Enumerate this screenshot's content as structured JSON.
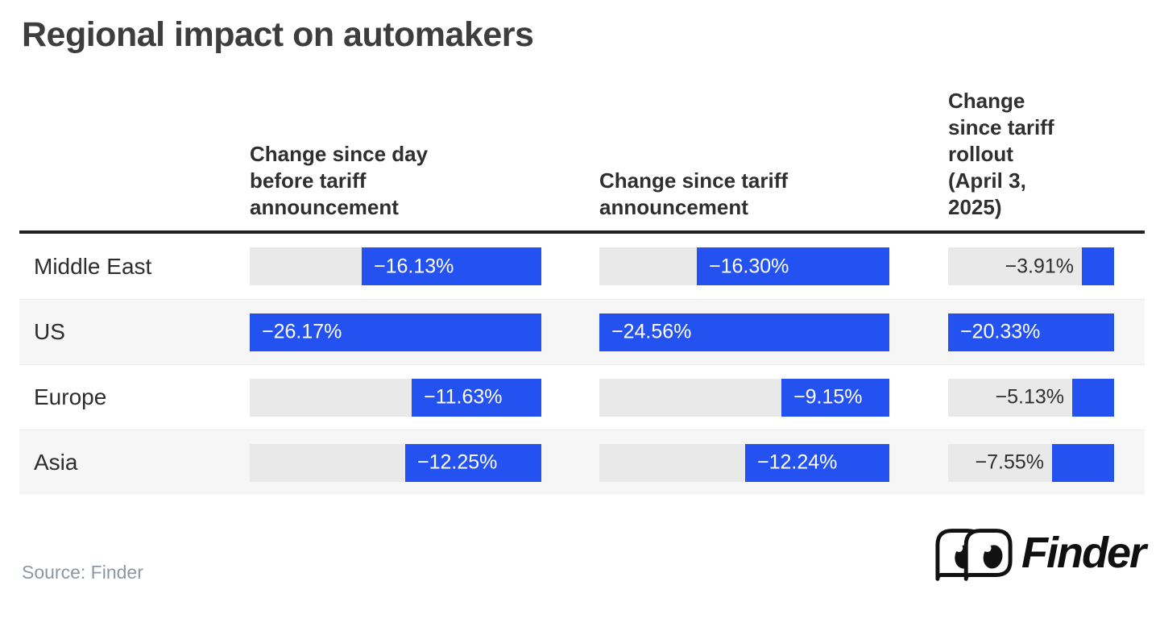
{
  "title": "Regional impact on automakers",
  "source_note": "Source: Finder",
  "brand": {
    "wordmark": "Finder",
    "icon": "finder-eyes-icon"
  },
  "colors": {
    "bar_blue": "#2452f0",
    "track_gray": "#e9e9e9",
    "row_stripe": "#f6f6f7",
    "header_rule": "#222222",
    "source_text": "#8d97a4"
  },
  "chart_data": {
    "type": "bar",
    "orientation": "horizontal",
    "bar_anchor": "right",
    "value_format": "percent",
    "grid": "off",
    "legend": "none",
    "categories": [
      "Middle East",
      "US",
      "Europe",
      "Asia"
    ],
    "series": [
      {
        "name": "Change since day\nbefore tariff\nannouncement",
        "values": [
          -16.13,
          -26.17,
          -11.63,
          -12.25
        ],
        "labels": [
          "−16.13%",
          "−26.17%",
          "−11.63%",
          "−12.25%"
        ],
        "scale_max": 26.17
      },
      {
        "name": "Change since tariff\nannouncement",
        "values": [
          -16.3,
          -24.56,
          -9.15,
          -12.24
        ],
        "labels": [
          "−16.30%",
          "−24.56%",
          "−9.15%",
          "−12.24%"
        ],
        "scale_max": 24.56
      },
      {
        "name": "Change\nsince tariff\nrollout\n(April 3,\n2025)",
        "values": [
          -3.91,
          -20.33,
          -5.13,
          -7.55
        ],
        "labels": [
          "−3.91%",
          "−20.33%",
          "−5.13%",
          "−7.55%"
        ],
        "scale_max": 20.33
      }
    ]
  }
}
